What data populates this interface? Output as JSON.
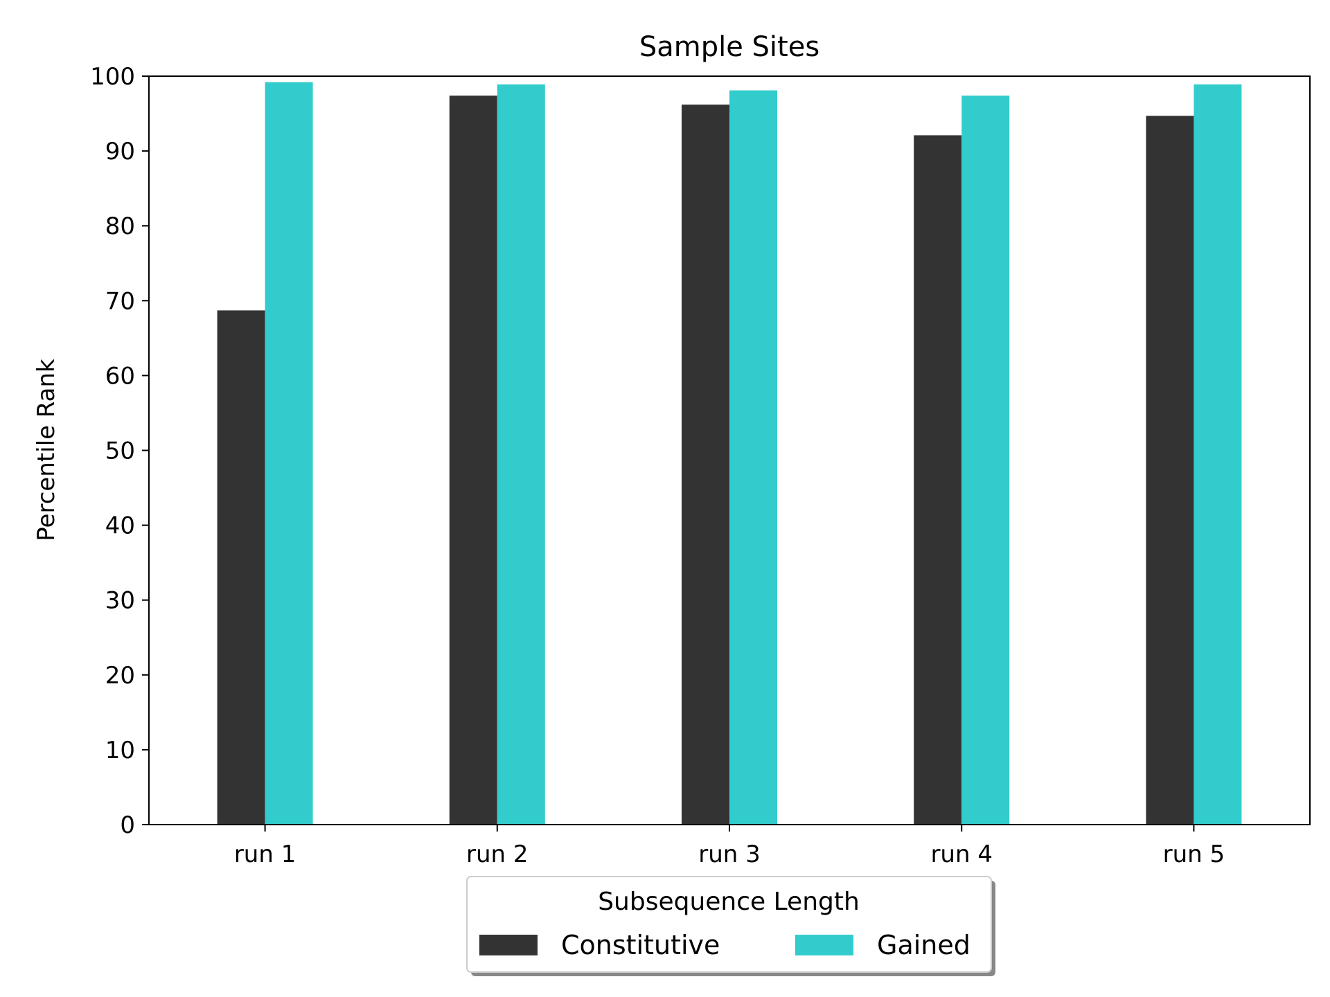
{
  "chart_data": {
    "type": "bar",
    "title": "Sample Sites",
    "xlabel": "",
    "ylabel": "Percentile Rank",
    "ylim": [
      0,
      100
    ],
    "yticks": [
      "0",
      "10",
      "20",
      "30",
      "40",
      "50",
      "60",
      "70",
      "80",
      "90",
      "100"
    ],
    "categories": [
      "run 1",
      "run 2",
      "run 3",
      "run 4",
      "run 5"
    ],
    "series": [
      {
        "name": "Constitutive",
        "color": "#333333",
        "values": [
          68.7,
          97.4,
          96.2,
          92.1,
          94.7
        ]
      },
      {
        "name": "Gained",
        "color": "#33cccc",
        "values": [
          99.2,
          98.9,
          98.1,
          97.4,
          98.9
        ]
      }
    ],
    "grid": false,
    "legend": {
      "title": "Subsequence Length",
      "placement": "bottom-center, below axes",
      "entries": [
        "Constitutive",
        "Gained"
      ]
    }
  }
}
